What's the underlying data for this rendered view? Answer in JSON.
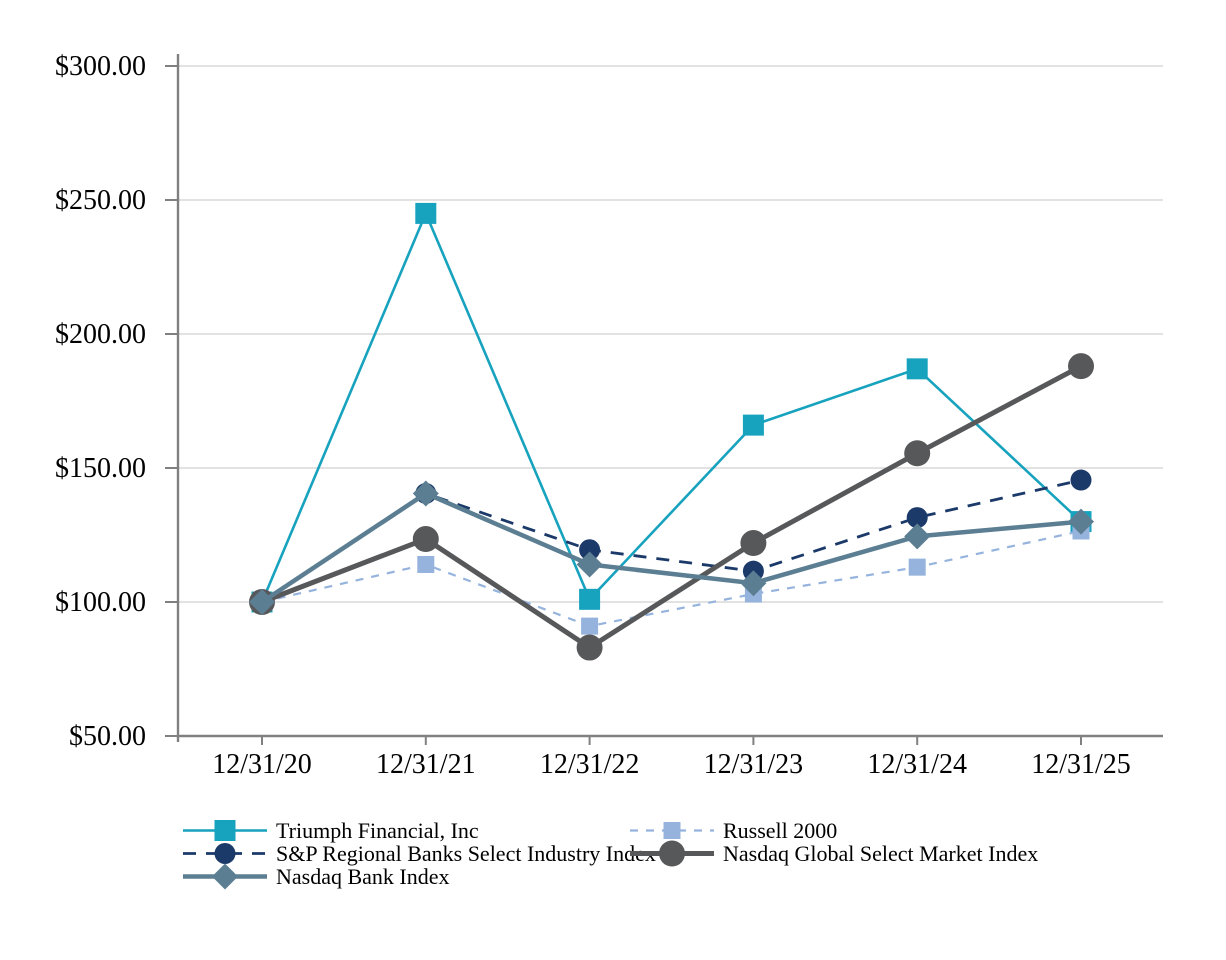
{
  "chart_data": {
    "type": "line",
    "title": "",
    "xlabel": "",
    "ylabel": "",
    "categories": [
      "12/31/20",
      "12/31/21",
      "12/31/22",
      "12/31/23",
      "12/31/24",
      "12/31/25"
    ],
    "series": [
      {
        "name": "Triumph Financial, Inc",
        "values": [
          100.0,
          245.0,
          101.0,
          166.0,
          187.0,
          130.0
        ],
        "color": "#17A2BE",
        "marker": "square",
        "marker_size": 21,
        "dash": "",
        "width": 2.6,
        "z": 1
      },
      {
        "name": "S&P Regional Banks Select Industry Index",
        "values": [
          100.0,
          140.5,
          119.5,
          111.5,
          131.5,
          145.5
        ],
        "color": "#1B3A69",
        "marker": "circle",
        "marker_size": 21,
        "dash": "13,10",
        "width": 2.8,
        "z": 2
      },
      {
        "name": "Nasdaq Bank Index",
        "values": [
          100.0,
          140.5,
          114.0,
          107.0,
          124.5,
          130.0
        ],
        "color": "#5B7E92",
        "marker": "diamond",
        "marker_size": 26,
        "dash": "",
        "width": 4.5,
        "z": 5
      },
      {
        "name": "Russell 2000",
        "values": [
          100.0,
          114.0,
          91.0,
          103.0,
          113.0,
          126.5
        ],
        "color": "#95B3DC",
        "marker": "square",
        "marker_size": 17,
        "dash": "8,8",
        "width": 2.2,
        "z": 3
      },
      {
        "name": "Nasdaq Global Select Market Index",
        "values": [
          100.0,
          123.5,
          83.0,
          122.0,
          155.5,
          188.0
        ],
        "color": "#57585A",
        "marker": "circle",
        "marker_size": 26,
        "dash": "",
        "width": 5,
        "z": 4
      }
    ],
    "ylim": [
      50,
      300
    ],
    "yticks": [
      {
        "value": 50,
        "label": "$50.00"
      },
      {
        "value": 100,
        "label": "$100.00"
      },
      {
        "value": 150,
        "label": "$150.00"
      },
      {
        "value": 200,
        "label": "$200.00"
      },
      {
        "value": 250,
        "label": "$250.00"
      },
      {
        "value": 300,
        "label": "$300.00"
      }
    ],
    "grid": true,
    "grid_color": "#D9D9D9",
    "axis_color": "#808080",
    "text_color": "#000000",
    "legend_position": "bottom",
    "legend_columns": [
      [
        0,
        1,
        2
      ],
      [
        3,
        4
      ]
    ]
  }
}
